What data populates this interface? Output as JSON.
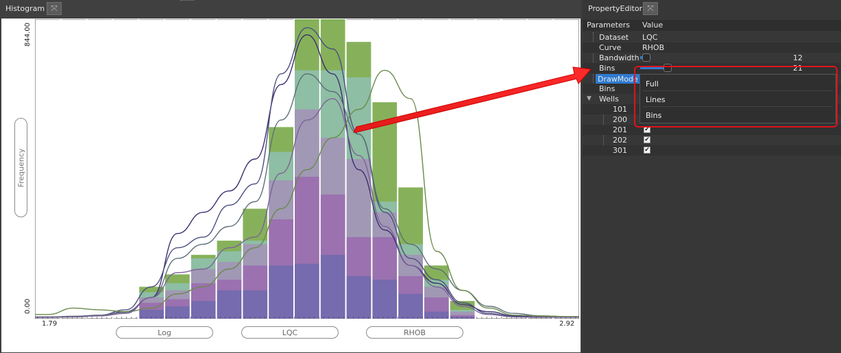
{
  "histogram_panel": {
    "title": "Histogram",
    "y_axis_label": "Frequency",
    "y_max_label": "844.00",
    "y_min_label": "0.00",
    "x_min_label": "1.79",
    "x_max_label": "2.92",
    "pills": [
      "Log",
      "LQC",
      "RHOB"
    ]
  },
  "property_editor": {
    "title": "PropertyEditor",
    "columns": [
      "Parameters",
      "Value"
    ],
    "rows": [
      {
        "key": "Dataset",
        "value": "LQC"
      },
      {
        "key": "Curve",
        "value": "RHOB"
      },
      {
        "key": "Bandwidth",
        "value": "12"
      },
      {
        "key": "Bins",
        "value": "21"
      },
      {
        "key": "DrawMode",
        "value": ""
      },
      {
        "key": "Bins",
        "value": ""
      }
    ],
    "wells_label": "Wells",
    "wells": [
      {
        "name": "101",
        "checked": false
      },
      {
        "name": "200",
        "checked": false
      },
      {
        "name": "201",
        "checked": true
      },
      {
        "name": "202",
        "checked": true
      },
      {
        "name": "301",
        "checked": true
      }
    ],
    "bandwidth_level": 0.0,
    "bins_level": 0.13,
    "drawmode_options": [
      "Full",
      "Lines",
      "Bins"
    ]
  },
  "chart_data": {
    "type": "bar",
    "x_range": [
      1.79,
      2.92
    ],
    "ylim": [
      0,
      844
    ],
    "bins": 21,
    "colors": {
      "green": "#86b15a",
      "teal": "#8fc1b2",
      "mauve": "#a592b8",
      "purple": "#9a6aae",
      "blue": "#6f6aae"
    },
    "series": [
      {
        "name": "green",
        "values": [
          0,
          0,
          0,
          0,
          90,
          125,
          180,
          220,
          310,
          540,
          850,
          850,
          780,
          610,
          370,
          150,
          50,
          0,
          0,
          0,
          0
        ]
      },
      {
        "name": "teal",
        "values": [
          0,
          0,
          0,
          0,
          75,
          100,
          170,
          190,
          220,
          470,
          700,
          700,
          680,
          330,
          210,
          110,
          25,
          0,
          0,
          0,
          0
        ]
      },
      {
        "name": "mauve",
        "values": [
          0,
          0,
          0,
          0,
          60,
          80,
          140,
          160,
          210,
          390,
          590,
          510,
          450,
          300,
          180,
          90,
          20,
          0,
          0,
          0,
          0
        ]
      },
      {
        "name": "purple",
        "values": [
          0,
          0,
          0,
          0,
          45,
          55,
          100,
          110,
          150,
          280,
          400,
          350,
          230,
          230,
          120,
          60,
          10,
          0,
          0,
          0,
          0
        ]
      },
      {
        "name": "blue",
        "values": [
          0,
          0,
          0,
          0,
          25,
          35,
          50,
          80,
          80,
          150,
          155,
          180,
          120,
          110,
          70,
          20,
          5,
          0,
          0,
          0,
          0
        ]
      }
    ],
    "kde_lines": [
      {
        "color": "#3b2d6e",
        "values": [
          5,
          6,
          8,
          20,
          60,
          240,
          300,
          360,
          450,
          660,
          800,
          690,
          420,
          250,
          150,
          100,
          40,
          20,
          8,
          5,
          5
        ]
      },
      {
        "color": "#4a4f7e",
        "values": [
          4,
          6,
          10,
          25,
          90,
          200,
          230,
          320,
          380,
          690,
          820,
          760,
          520,
          300,
          170,
          110,
          45,
          15,
          6,
          5,
          5
        ]
      },
      {
        "color": "#5d6e7a",
        "values": [
          5,
          7,
          10,
          18,
          60,
          170,
          210,
          260,
          330,
          560,
          690,
          640,
          520,
          310,
          210,
          140,
          80,
          35,
          15,
          8,
          6
        ]
      },
      {
        "color": "#6a8a4a",
        "values": [
          12,
          30,
          25,
          20,
          30,
          70,
          90,
          140,
          200,
          310,
          420,
          510,
          590,
          700,
          620,
          190,
          80,
          30,
          10,
          8,
          6
        ]
      },
      {
        "color": "#7c6298",
        "values": [
          4,
          5,
          8,
          15,
          60,
          130,
          140,
          200,
          230,
          410,
          560,
          620,
          460,
          260,
          150,
          90,
          35,
          12,
          5,
          4,
          4
        ]
      }
    ]
  }
}
